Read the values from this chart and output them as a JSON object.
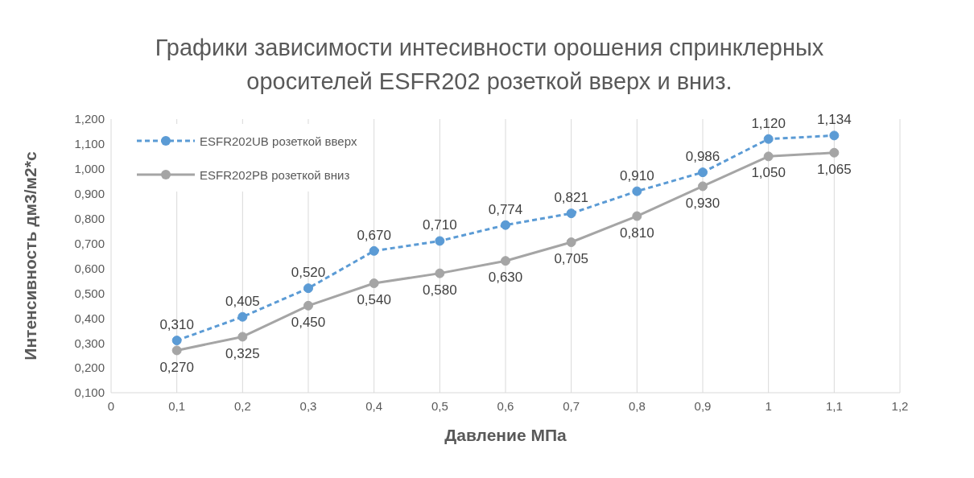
{
  "chart_data": {
    "type": "line",
    "title": "Графики зависимости интесивности орошения спринклерных оросителей ESFR202 розеткой вверх и вниз.",
    "xlabel": "Давление МПа",
    "ylabel": "Интенсивность дм3/м2*с",
    "x": [
      0.1,
      0.2,
      0.3,
      0.4,
      0.5,
      0.6,
      0.7,
      0.8,
      0.9,
      1,
      1.1
    ],
    "series": [
      {
        "name": "ESFR202UB розеткой вверх",
        "color": "#5b9bd5",
        "line_style": "dashed",
        "values": [
          0.31,
          0.405,
          0.52,
          0.67,
          0.71,
          0.774,
          0.821,
          0.91,
          0.986,
          1.12,
          1.134
        ],
        "value_labels": [
          "0,310",
          "0,405",
          "0,520",
          "0,670",
          "0,710",
          "0,774",
          "0,821",
          "0,910",
          "0,986",
          "1,120",
          "1,134"
        ]
      },
      {
        "name": "ESFR202PB розеткой вниз",
        "color": "#a5a5a5",
        "line_style": "solid",
        "values": [
          0.27,
          0.325,
          0.45,
          0.54,
          0.58,
          0.63,
          0.705,
          0.81,
          0.93,
          1.05,
          1.065
        ],
        "value_labels": [
          "0,270",
          "0,325",
          "0,450",
          "0,540",
          "0,580",
          "0,630",
          "0,705",
          "0,810",
          "0,930",
          "1,050",
          "1,065"
        ]
      }
    ],
    "marker": "circle",
    "grid": "x",
    "legend": "top left",
    "xlim": [
      0,
      1.2
    ],
    "xticks": [
      0,
      {
        "value": 0.1,
        "label": "0,1"
      },
      {
        "value": 0.2,
        "label": "0,2"
      },
      {
        "value": 0.3,
        "label": "0,3"
      },
      {
        "value": 0.4,
        "label": "0,4"
      },
      {
        "value": 0.5,
        "label": "0,5"
      },
      {
        "value": 0.6,
        "label": "0,6"
      },
      {
        "value": 0.7,
        "label": "0,7"
      },
      {
        "value": 0.8,
        "label": "0,8"
      },
      {
        "value": 0.9,
        "label": "0,9"
      },
      1,
      {
        "value": 1.1,
        "label": "1,1"
      },
      {
        "value": 1.2,
        "label": "1,2"
      }
    ],
    "ylim": [
      0.1,
      1.2
    ],
    "yticks": [
      {
        "value": 0.1,
        "label": "0,100"
      },
      {
        "value": 0.2,
        "label": "0,200"
      },
      {
        "value": 0.3,
        "label": "0,300"
      },
      {
        "value": 0.4,
        "label": "0,400"
      },
      {
        "value": 0.5,
        "label": "0,500"
      },
      {
        "value": 0.6,
        "label": "0,600"
      },
      {
        "value": 0.7,
        "label": "0,700"
      },
      {
        "value": 0.8,
        "label": "0,800"
      },
      {
        "value": 0.9,
        "label": "0,900"
      },
      {
        "value": 1,
        "label": "1,000"
      },
      {
        "value": 1.1,
        "label": "1,100"
      },
      {
        "value": 1.2,
        "label": "1,200"
      }
    ]
  }
}
